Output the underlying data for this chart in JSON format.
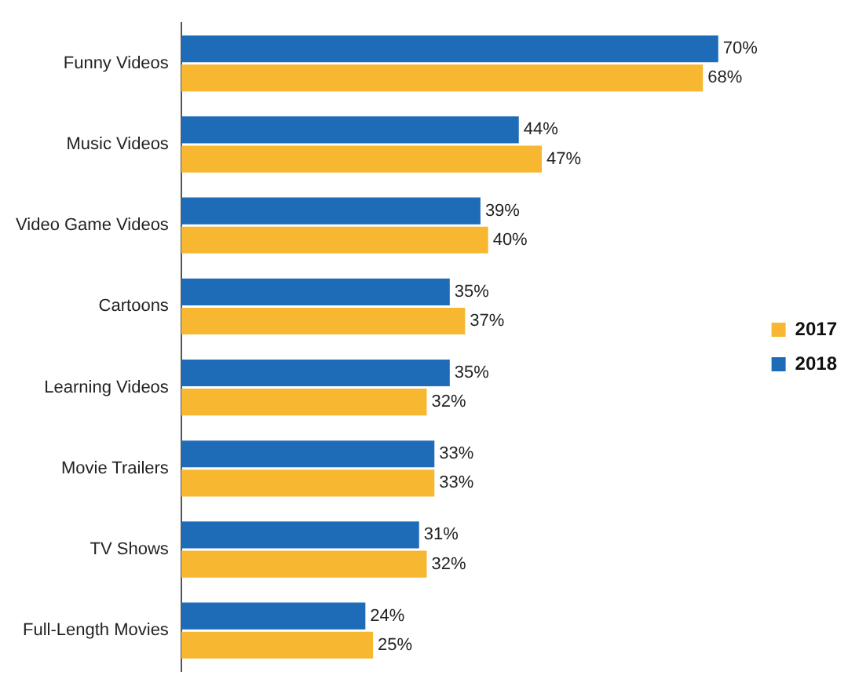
{
  "chart_data": {
    "type": "bar",
    "orientation": "horizontal",
    "categories": [
      "Funny Videos",
      "Music Videos",
      "Video Game Videos",
      "Cartoons",
      "Learning Videos",
      "Movie Trailers",
      "TV Shows",
      "Full-Length Movies"
    ],
    "series": [
      {
        "name": "2018",
        "color": "#1e6bb8",
        "values": [
          70,
          44,
          39,
          35,
          35,
          33,
          31,
          24
        ],
        "value_labels": [
          "70%",
          "44%",
          "39%",
          "35%",
          "35%",
          "33%",
          "31%",
          "24%"
        ]
      },
      {
        "name": "2017",
        "color": "#f7b731",
        "values": [
          68,
          47,
          40,
          37,
          32,
          33,
          32,
          25
        ],
        "value_labels": [
          "68%",
          "47%",
          "40%",
          "37%",
          "32%",
          "33%",
          "32%",
          "25%"
        ]
      }
    ],
    "legend": "right"
  }
}
